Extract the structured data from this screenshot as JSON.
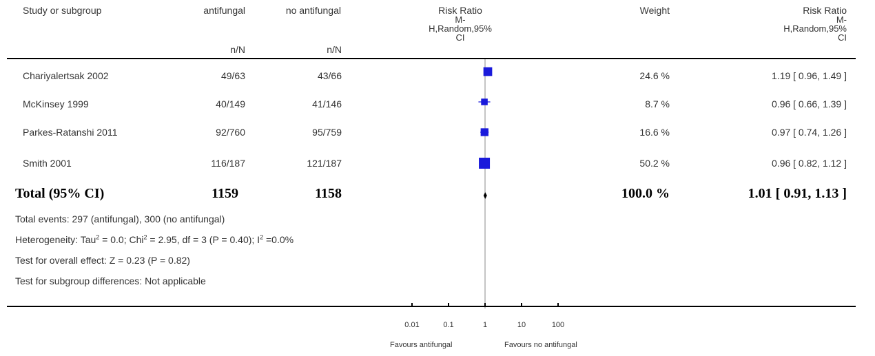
{
  "headers": {
    "study": "Study or subgroup",
    "group1": "antifungal",
    "group2": "no antifungal",
    "nN1": "n/N",
    "nN2": "n/N",
    "rr_plot_line1": "Risk Ratio",
    "rr_plot_line2": "M-",
    "rr_plot_line3": "H,Random,95%",
    "rr_plot_line4": "CI",
    "weight": "Weight",
    "rr_line1": "Risk Ratio",
    "rr_line2": "M-",
    "rr_line3": "H,Random,95%",
    "rr_line4": "CI"
  },
  "studies": [
    {
      "name": "Chariyalertsak 2002",
      "g1": "49/63",
      "g2": "43/66",
      "weight": "24.6 %",
      "ci_text": "1.19 [ 0.96, 1.49 ]"
    },
    {
      "name": "McKinsey 1999",
      "g1": "40/149",
      "g2": "41/146",
      "weight": "8.7 %",
      "ci_text": "0.96 [ 0.66, 1.39 ]"
    },
    {
      "name": "Parkes-Ratanshi 2011",
      "g1": "92/760",
      "g2": "95/759",
      "weight": "16.6 %",
      "ci_text": "0.97 [ 0.74, 1.26 ]"
    },
    {
      "name": "Smith 2001",
      "g1": "116/187",
      "g2": "121/187",
      "weight": "50.2 %",
      "ci_text": "0.96 [ 0.82, 1.12 ]"
    }
  ],
  "total": {
    "label": "Total (95% CI)",
    "g1": "1159",
    "g2": "1158",
    "weight": "100.0 %",
    "ci_text": "1.01 [ 0.91, 1.13 ]"
  },
  "footer": {
    "events": "Total events: 297 (antifungal), 300 (no antifungal)",
    "het_a": "Heterogeneity: Tau",
    "het_sup1": "2",
    "het_b": " = 0.0; Chi",
    "het_sup2": "2",
    "het_c": " = 2.95, df = 3 (P = 0.40); I",
    "het_sup3": "2",
    "het_d": " =0.0%",
    "overall": "Test for overall effect: Z = 0.23 (P = 0.82)",
    "subgroup": "Test for subgroup differences: Not applicable"
  },
  "axis": {
    "favours_left": "Favours antifungal",
    "favours_right": "Favours no antifungal"
  },
  "chart_data": {
    "type": "forest",
    "scale": "log",
    "xlim": [
      0.01,
      100
    ],
    "ticks": [
      0.01,
      0.1,
      1,
      10,
      100
    ],
    "tick_labels": [
      "0.01",
      "0.1",
      "1",
      "10",
      "100"
    ],
    "series": [
      {
        "rr": 1.19,
        "lo": 0.96,
        "hi": 1.49,
        "weight": 24.6
      },
      {
        "rr": 0.96,
        "lo": 0.66,
        "hi": 1.39,
        "weight": 8.7
      },
      {
        "rr": 0.97,
        "lo": 0.74,
        "hi": 1.26,
        "weight": 16.6
      },
      {
        "rr": 0.96,
        "lo": 0.82,
        "hi": 1.12,
        "weight": 50.2
      }
    ],
    "pooled": {
      "rr": 1.01,
      "lo": 0.91,
      "hi": 1.13
    },
    "marker_color": "#1a1adb"
  }
}
